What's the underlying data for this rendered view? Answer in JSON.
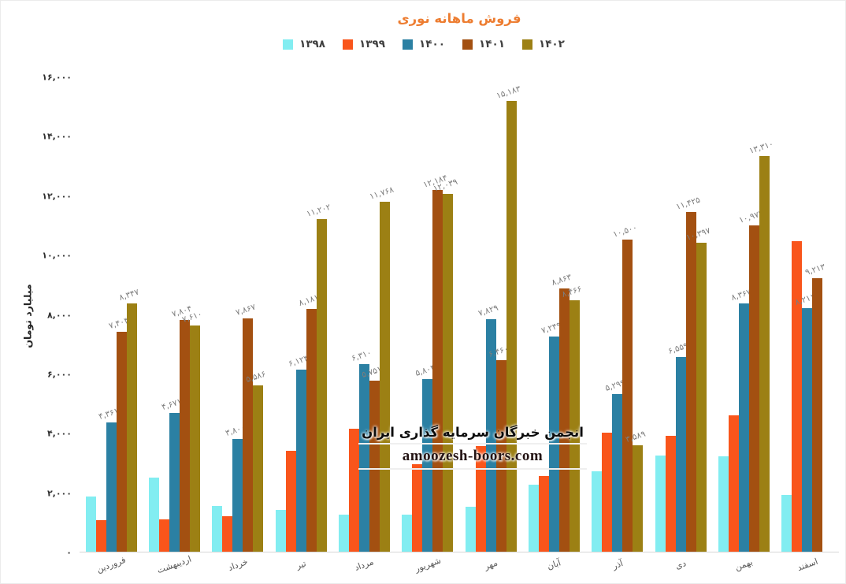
{
  "chart_data": {
    "type": "bar",
    "title": "فروش ماهانه نوری",
    "xlabel": "",
    "ylabel": "میلیارد تومان",
    "ylim": [
      0,
      16000
    ],
    "ytick_step": 2000,
    "ytick_labels": [
      "۰",
      "۲,۰۰۰",
      "۴,۰۰۰",
      "۶,۰۰۰",
      "۸,۰۰۰",
      "۱۰,۰۰۰",
      "۱۲,۰۰۰",
      "۱۴,۰۰۰",
      "۱۶,۰۰۰"
    ],
    "grid": false,
    "legend_position": "top",
    "categories": [
      "فروردین",
      "اردیبهشت",
      "خرداد",
      "تیر",
      "مرداد",
      "شهریور",
      "مهر",
      "آبان",
      "آذر",
      "دی",
      "بهمن",
      "اسفند"
    ],
    "series": [
      {
        "name": "۱۳۹۸",
        "color": "#82EDF1",
        "values": [
          1850,
          2500,
          1550,
          1400,
          1250,
          1250,
          1500,
          2250,
          2700,
          3250,
          3200,
          1900
        ],
        "labels": [
          "",
          "",
          "",
          "",
          "",
          "",
          "",
          "",
          "",
          "",
          "",
          ""
        ]
      },
      {
        "name": "۱۳۹۹",
        "color": "#F9551B",
        "values": [
          1050,
          1100,
          1200,
          3400,
          4150,
          2950,
          3550,
          2550,
          4000,
          3900,
          4600,
          10450
        ],
        "labels": [
          "",
          "",
          "",
          "",
          "",
          "",
          "",
          "",
          "",
          "",
          "",
          ""
        ]
      },
      {
        "name": "۱۴۰۰",
        "color": "#2B80A3",
        "values": [
          4361,
          4671,
          3800,
          6123,
          6310,
          5804,
          7829,
          7249,
          5299,
          6559,
          8367,
          8211
        ],
        "labels": [
          "۴,۳۶۱",
          "۴,۶۷۱",
          "۳,۸۰۰",
          "۶,۱۲۳",
          "۶,۳۱۰",
          "۵,۸۰۴",
          "۷,۸۲۹",
          "۷,۲۴۹",
          "۵,۲۹۹",
          "۶,۵۵۹",
          "۸,۳۶۷",
          "۸,۲۱۱"
        ]
      },
      {
        "name": "۱۴۰۱",
        "color": "#A35011",
        "values": [
          7403,
          7804,
          7867,
          8181,
          5751,
          12184,
          6460,
          8863,
          10500,
          11425,
          10974,
          9213
        ],
        "labels": [
          "۷,۴۰۳",
          "۷,۸۰۴",
          "۷,۸۶۷",
          "۸,۱۸۱",
          "۵,۷۵۱",
          "۱۲,۱۸۴",
          "۶,۴۶۰",
          "۸,۸۶۳",
          "۱۰,۵۰۰",
          "۱۱,۴۲۵",
          "۱۰,۹۷۴",
          "۹,۲۱۳"
        ]
      },
      {
        "name": "۱۴۰۲",
        "color": "#9C8014",
        "values": [
          8347,
          7610,
          5586,
          11202,
          11768,
          12039,
          15183,
          8466,
          3589,
          10397,
          13310,
          null
        ],
        "labels": [
          "۸,۳۴۷",
          "۷,۶۱۰",
          "۵,۵۸۶",
          "۱۱,۲۰۲",
          "۱۱,۷۶۸",
          "۱۲,۰۳۹",
          "۱۵,۱۸۳",
          "۸,۴۶۶",
          "۳,۵۸۹",
          "۱۰,۳۹۷",
          "۱۳,۳۱۰",
          ""
        ]
      }
    ]
  },
  "watermark": {
    "line1": "انجمن خبرگان سرمایه گذاری ایران",
    "line2": "amoozesh-boors.com"
  },
  "colors": {
    "title": "#ED7D31",
    "axis_tick_text": "#303030",
    "x_label_text": "#595959",
    "data_label_text": "#7D7D7D",
    "axis_line": "#D6D6D6"
  }
}
